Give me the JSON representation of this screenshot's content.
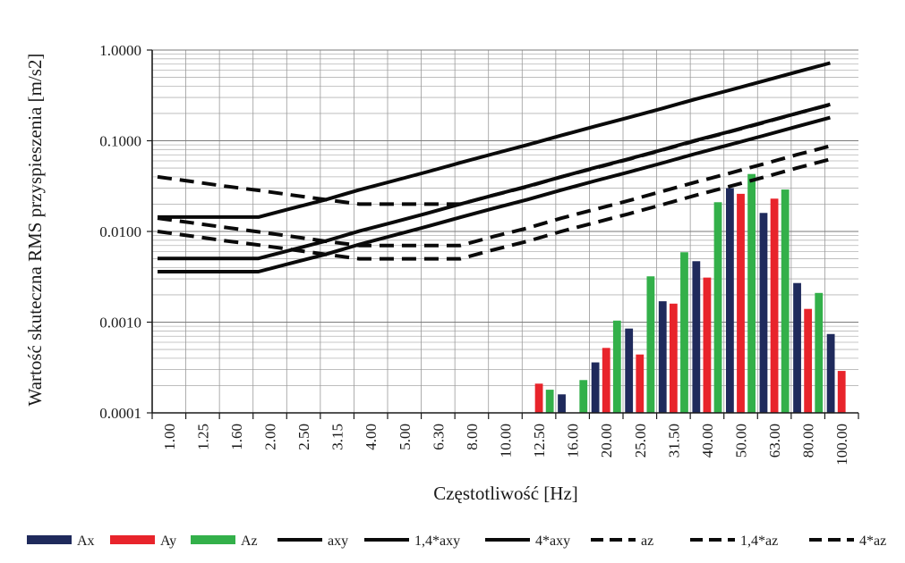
{
  "chart_data": {
    "type": "bar",
    "xlabel": "Częstotliwość [Hz]",
    "ylabel": "Wartość skuteczna RMS przyspieszenia [m/s2]",
    "y_scale": "log",
    "ylim": [
      0.0001,
      1.0
    ],
    "y_ticks": [
      "0.0001",
      "0.0010",
      "0.0100",
      "0.1000",
      "1.0000"
    ],
    "grid": true,
    "legend_position": "bottom",
    "categories": [
      "1.00",
      "1.25",
      "1.60",
      "2.00",
      "2.50",
      "3.15",
      "4.00",
      "5.00",
      "6.30",
      "8.00",
      "10.00",
      "12.50",
      "16.00",
      "20.00",
      "25.00",
      "31.50",
      "40.00",
      "50.00",
      "63.00",
      "80.00",
      "100.00"
    ],
    "series": [
      {
        "name": "Ax",
        "kind": "bar",
        "color": "#1f2a5c",
        "values": [
          null,
          null,
          null,
          null,
          null,
          null,
          null,
          null,
          null,
          null,
          null,
          0.0001,
          0.00016,
          0.00036,
          0.00085,
          0.0017,
          0.0047,
          0.03,
          0.016,
          0.0027,
          0.00074
        ]
      },
      {
        "name": "Ay",
        "kind": "bar",
        "color": "#e8242b",
        "values": [
          null,
          null,
          null,
          null,
          null,
          null,
          null,
          null,
          null,
          null,
          null,
          0.00021,
          null,
          0.00052,
          0.00044,
          0.0016,
          0.0031,
          0.026,
          0.023,
          0.0014,
          0.00029
        ]
      },
      {
        "name": "Az",
        "kind": "bar",
        "color": "#33b04a",
        "values": [
          null,
          null,
          null,
          null,
          null,
          null,
          null,
          null,
          null,
          null,
          null,
          0.00018,
          0.00023,
          0.00104,
          0.0032,
          0.0059,
          0.021,
          0.043,
          0.029,
          0.0021,
          null
        ]
      },
      {
        "name": "axy",
        "kind": "line",
        "dash": false,
        "values": [
          0.0036,
          0.0036,
          0.0036,
          0.0036,
          0.0045,
          0.0056,
          0.0072,
          0.009,
          0.0113,
          0.0143,
          0.018,
          0.0225,
          0.0286,
          0.036,
          0.045,
          0.0567,
          0.072,
          0.09,
          0.1134,
          0.143,
          0.18
        ]
      },
      {
        "name": "1,4*axy",
        "kind": "line",
        "dash": false,
        "values": [
          0.00504,
          0.00504,
          0.00504,
          0.00504,
          0.0063,
          0.00784,
          0.01008,
          0.0126,
          0.01582,
          0.02,
          0.0252,
          0.0315,
          0.04,
          0.0504,
          0.063,
          0.0794,
          0.1008,
          0.126,
          0.1588,
          0.2,
          0.252
        ]
      },
      {
        "name": "4*axy",
        "kind": "line",
        "dash": false,
        "values": [
          0.0144,
          0.0144,
          0.0144,
          0.0144,
          0.018,
          0.0224,
          0.0288,
          0.036,
          0.0452,
          0.0572,
          0.072,
          0.09,
          0.1144,
          0.144,
          0.18,
          0.2268,
          0.288,
          0.36,
          0.4536,
          0.572,
          0.72
        ]
      },
      {
        "name": "az",
        "kind": "line",
        "dash": true,
        "values": [
          0.01,
          0.0089,
          0.0079,
          0.0071,
          0.0063,
          0.0056,
          0.005,
          0.005,
          0.005,
          0.005,
          0.0063,
          0.0078,
          0.01,
          0.0125,
          0.0156,
          0.0197,
          0.025,
          0.0313,
          0.0394,
          0.05,
          0.0625
        ]
      },
      {
        "name": "1,4*az",
        "kind": "line",
        "dash": true,
        "values": [
          0.014,
          0.0125,
          0.0111,
          0.0099,
          0.0088,
          0.0078,
          0.007,
          0.007,
          0.007,
          0.007,
          0.0088,
          0.0109,
          0.014,
          0.0175,
          0.0218,
          0.0276,
          0.035,
          0.0438,
          0.0552,
          0.07,
          0.0875
        ]
      },
      {
        "name": "4*az",
        "kind": "line",
        "dash": true,
        "values": [
          0.04,
          0.0356,
          0.0316,
          0.0284,
          0.0252,
          0.0224,
          0.02,
          0.02,
          0.02,
          0.02,
          0.0252,
          0.0312,
          0.04,
          0.05,
          0.0624,
          0.0788,
          0.1,
          0.1252,
          0.1576,
          0.2,
          0.25
        ]
      }
    ]
  }
}
